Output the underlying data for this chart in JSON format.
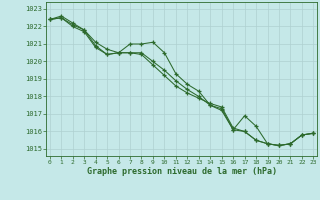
{
  "title": "Graphe pression niveau de la mer (hPa)",
  "background_color": "#c5e8e8",
  "grid_color": "#afd0d0",
  "line_color": "#2d6a2d",
  "ylim": [
    1014.6,
    1023.4
  ],
  "yticks": [
    1015,
    1016,
    1017,
    1018,
    1019,
    1020,
    1021,
    1022,
    1023
  ],
  "xticks": [
    0,
    1,
    2,
    3,
    4,
    5,
    6,
    7,
    8,
    9,
    10,
    11,
    12,
    13,
    14,
    15,
    16,
    17,
    18,
    19,
    20,
    21,
    22,
    23
  ],
  "series1": [
    1022.4,
    1022.6,
    1022.2,
    1021.8,
    1021.1,
    1020.7,
    1020.5,
    1021.0,
    1021.0,
    1021.1,
    1020.5,
    1019.3,
    1018.7,
    1018.3,
    1017.5,
    1017.3,
    1016.1,
    1016.9,
    1016.3,
    1015.3,
    1015.2,
    1015.3,
    1015.8,
    1015.9
  ],
  "series2": [
    1022.4,
    1022.5,
    1022.1,
    1021.8,
    1020.9,
    1020.4,
    1020.5,
    1020.5,
    1020.5,
    1020.0,
    1019.5,
    1018.9,
    1018.4,
    1018.0,
    1017.5,
    1017.2,
    1016.1,
    1016.0,
    1015.5,
    1015.3,
    1015.2,
    1015.3,
    1015.8,
    1015.9
  ],
  "series3": [
    1022.4,
    1022.5,
    1022.0,
    1021.7,
    1020.8,
    1020.4,
    1020.5,
    1020.5,
    1020.4,
    1019.8,
    1019.2,
    1018.6,
    1018.2,
    1017.9,
    1017.6,
    1017.4,
    1016.2,
    1016.0,
    1015.5,
    1015.3,
    1015.2,
    1015.3,
    1015.8,
    1015.9
  ]
}
